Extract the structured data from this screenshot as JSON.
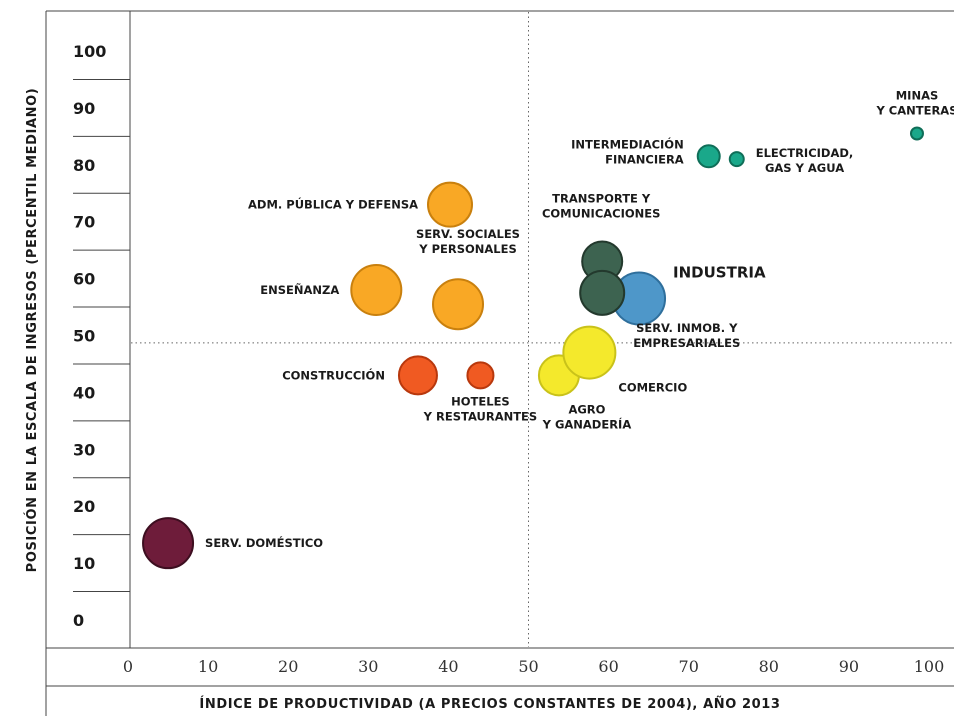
{
  "chart_data": {
    "type": "scatter",
    "variant": "bubble",
    "xlabel": "ÍNDICE DE PRODUCTIVIDAD (A PRECIOS CONSTANTES DE 2004), AÑO 2013",
    "ylabel": "POSICIÓN EN LA ESCALA DE INGRESOS (PERCENTIL MEDIANO)",
    "xlim": [
      -0.5,
      102
    ],
    "ylim": [
      -5,
      105
    ],
    "x_ticks": [
      "0",
      "10",
      "20",
      "30",
      "40",
      "50",
      "60",
      "70",
      "80",
      "90",
      "100"
    ],
    "y_ticks": [
      "100",
      "90",
      "80",
      "70",
      "60",
      "50",
      "40",
      "30",
      "20",
      "10",
      "0"
    ],
    "reference_lines": {
      "x": 50,
      "y": 48.7
    },
    "grid": false,
    "points": [
      {
        "label_lines": [
          "SERV. DOMÉSTICO"
        ],
        "x": 5,
        "y": 13.5,
        "r": 25,
        "color": "#6e1c3a",
        "label_pos": "right"
      },
      {
        "label_lines": [
          "CONSTRUCCIÓN"
        ],
        "x": 36.2,
        "y": 43,
        "r": 19,
        "color": "#f05a22",
        "label_pos": "left"
      },
      {
        "label_lines": [
          "HOTELES",
          "Y RESTAURANTES"
        ],
        "x": 44,
        "y": 43,
        "r": 13,
        "color": "#f05a22",
        "label_pos": "below"
      },
      {
        "label_lines": [
          "ENSEÑANZA"
        ],
        "x": 31,
        "y": 58,
        "r": 25,
        "color": "#f9a825",
        "label_pos": "left"
      },
      {
        "label_lines": [
          "SERV. SOCIALES",
          "Y PERSONALES"
        ],
        "x": 41.2,
        "y": 55.5,
        "r": 25,
        "color": "#f9a825",
        "label_pos": "above"
      },
      {
        "label_lines": [
          "ADM. PÚBLICA Y DEFENSA"
        ],
        "x": 40.2,
        "y": 73,
        "r": 22,
        "color": "#f9a825",
        "label_pos": "left"
      },
      {
        "label_lines": [
          "AGRO",
          "Y GANADERÍA"
        ],
        "x": 53.8,
        "y": 43,
        "r": 20,
        "color": "#f4e92c",
        "label_pos": "below"
      },
      {
        "label_lines": [
          "COMERCIO"
        ],
        "x": 57.6,
        "y": 47,
        "r": 26,
        "color": "#f4e92c",
        "label_pos": "below-right"
      },
      {
        "label_lines": [
          "INDUSTRIA"
        ],
        "x": 63.8,
        "y": 56.5,
        "r": 26,
        "color": "#4e97c9",
        "label_pos": "right",
        "big": true
      },
      {
        "label_lines": [
          "SERV. INMOB. Y",
          "EMPRESARIALES"
        ],
        "x": 59.2,
        "y": 57.5,
        "r": 22,
        "color": "#3d6350",
        "label_pos": "below-right"
      },
      {
        "label_lines": [
          "TRANSPORTE Y",
          "COMUNICACIONES"
        ],
        "x": 59.2,
        "y": 63,
        "r": 20,
        "color": "#3d6350",
        "label_pos": "above"
      },
      {
        "label_lines": [
          "INTERMEDIACIÓN",
          "FINANCIERA"
        ],
        "x": 72.5,
        "y": 81.5,
        "r": 11,
        "color": "#1aa88a",
        "label_pos": "left"
      },
      {
        "label_lines": [
          "ELECTRICIDAD,",
          "GAS Y AGUA"
        ],
        "x": 76,
        "y": 81,
        "r": 7,
        "color": "#1aa88a",
        "label_pos": "right"
      },
      {
        "label_lines": [
          "MINAS",
          "Y CANTERAS"
        ],
        "x": 98.5,
        "y": 85.5,
        "r": 6,
        "color": "#1aa88a",
        "label_pos": "above"
      }
    ]
  }
}
